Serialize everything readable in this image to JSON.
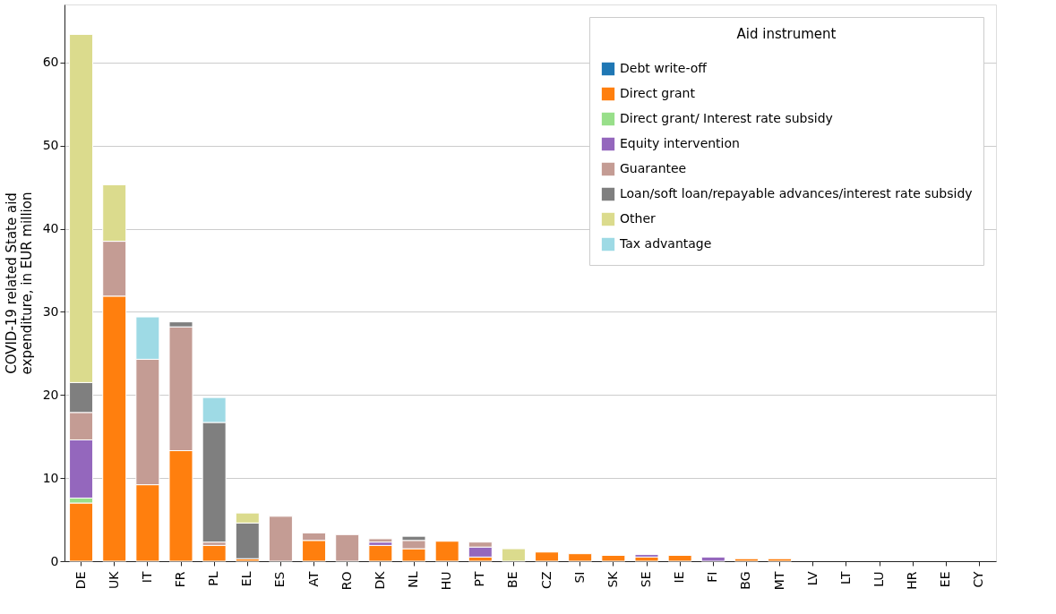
{
  "chart_data": {
    "type": "bar",
    "stacked": true,
    "ylabel": "COVID-19 related State aid\nexpenditure, in EUR million",
    "legend_title": "Aid instrument",
    "legend": "top right",
    "grid": "y",
    "ylim": [
      0,
      67
    ],
    "yticks": [
      0,
      10,
      20,
      30,
      40,
      50,
      60
    ],
    "categories": [
      "DE",
      "UK",
      "IT",
      "FR",
      "PL",
      "EL",
      "ES",
      "AT",
      "RO",
      "DK",
      "NL",
      "HU",
      "PT",
      "BE",
      "CZ",
      "SI",
      "SK",
      "SE",
      "IE",
      "FI",
      "BG",
      "MT",
      "LV",
      "LT",
      "LU",
      "HR",
      "EE",
      "CY"
    ],
    "series": [
      {
        "name": "Debt write-off",
        "color": "#1f77b4",
        "values": [
          null,
          null,
          null,
          null,
          null,
          null,
          null,
          null,
          null,
          null,
          null,
          null,
          null,
          null,
          null,
          null,
          null,
          null,
          null,
          null,
          null,
          null,
          null,
          null,
          null,
          null,
          null,
          null
        ]
      },
      {
        "name": "Direct grant",
        "color": "#ff7f0e",
        "values": [
          7.0,
          31.9,
          9.2,
          13.3,
          1.9,
          0.3,
          null,
          2.5,
          null,
          1.9,
          1.5,
          2.4,
          0.5,
          null,
          1.1,
          0.9,
          0.7,
          0.5,
          0.7,
          null,
          0.3,
          0.3,
          null,
          null,
          null,
          null,
          null,
          null
        ]
      },
      {
        "name": "Direct grant/ Interest rate subsidy",
        "color": "#98df8a",
        "values": [
          0.6,
          null,
          null,
          null,
          null,
          null,
          null,
          null,
          null,
          null,
          null,
          null,
          null,
          null,
          null,
          null,
          null,
          null,
          null,
          null,
          null,
          null,
          null,
          null,
          null,
          null,
          null,
          null
        ]
      },
      {
        "name": "Equity intervention",
        "color": "#9467bd",
        "values": [
          7.0,
          null,
          null,
          null,
          null,
          null,
          null,
          null,
          null,
          0.4,
          null,
          null,
          1.2,
          null,
          null,
          null,
          null,
          0.3,
          null,
          0.5,
          null,
          null,
          null,
          null,
          null,
          null,
          null,
          null
        ]
      },
      {
        "name": "Guarantee",
        "color": "#c49c94",
        "values": [
          3.3,
          6.6,
          15.1,
          14.9,
          0.4,
          null,
          5.4,
          0.9,
          3.2,
          0.4,
          1.0,
          null,
          0.6,
          null,
          null,
          null,
          null,
          null,
          null,
          null,
          null,
          null,
          null,
          null,
          null,
          null,
          null,
          null
        ]
      },
      {
        "name": "Loan/soft loan/repayable advances/interest rate subsidy",
        "color": "#7f7f7f",
        "values": [
          3.6,
          null,
          null,
          0.6,
          14.4,
          4.3,
          null,
          null,
          null,
          null,
          0.5,
          null,
          null,
          null,
          null,
          null,
          null,
          null,
          null,
          null,
          null,
          null,
          null,
          null,
          null,
          null,
          null,
          null
        ]
      },
      {
        "name": "Other",
        "color": "#dbdb8d",
        "values": [
          41.9,
          6.8,
          null,
          null,
          null,
          1.2,
          null,
          null,
          null,
          null,
          null,
          null,
          null,
          1.5,
          null,
          null,
          null,
          null,
          null,
          null,
          null,
          null,
          null,
          null,
          null,
          null,
          null,
          null
        ]
      },
      {
        "name": "Tax advantage",
        "color": "#9edae5",
        "values": [
          null,
          null,
          5.1,
          null,
          3.0,
          null,
          null,
          null,
          null,
          null,
          null,
          null,
          null,
          null,
          null,
          null,
          null,
          null,
          null,
          null,
          null,
          null,
          null,
          null,
          null,
          null,
          null,
          null
        ]
      }
    ]
  }
}
